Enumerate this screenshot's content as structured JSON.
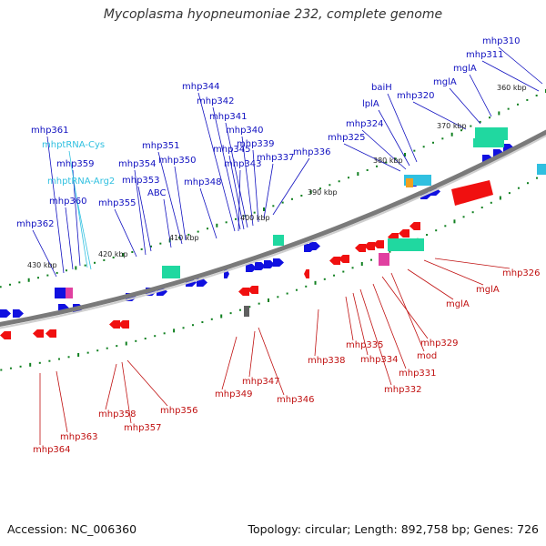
{
  "header": {
    "title": "Mycoplasma hyopneumoniae 232, complete genome"
  },
  "footer": {
    "accession": "Accession: NC_006360",
    "summary": "Topology: circular; Length: 892,758 bp; Genes: 726"
  },
  "colors": {
    "forward_label": "#1010c0",
    "reverse_label": "#c01010",
    "trna_label": "#30c0e0",
    "forward_gene": "#1010e0",
    "reverse_gene": "#f01010",
    "rrna": "#20d8a0",
    "backbone": "#808080",
    "tick": "#108020"
  },
  "kbp_labels": [
    "360 kbp",
    "370 kbp",
    "380 kbp",
    "390 kbp",
    "400 kbp",
    "410 kbp",
    "420 kbp",
    "430 kbp"
  ],
  "forward_labels": [
    "mhp310",
    "mhp311",
    "mglA",
    "mglA",
    "mhp320",
    "baiH",
    "lplA",
    "mhp324",
    "mhp325",
    "mhp336",
    "mhp337",
    "mhp339",
    "mhp340",
    "mhp341",
    "mhp342",
    "mhp344",
    "mhp345",
    "mhp343",
    "mhp348",
    "mhp350",
    "mhp351",
    "ABC",
    "mhp353",
    "mhp354",
    "mhp355",
    "mhp359",
    "mhp360",
    "mhp361",
    "mhp362"
  ],
  "trna_labels": [
    "mhptRNA-Cys",
    "mhptRNA-Arg2"
  ],
  "reverse_labels": [
    "mhp326",
    "mglA",
    "mglA",
    "mod",
    "mhp329",
    "mhp331",
    "mhp332",
    "mhp334",
    "mhp335",
    "mhp338",
    "mhp346",
    "mhp347",
    "mhp349",
    "mhp356",
    "mhp357",
    "mhp358",
    "mhp363",
    "mhp364"
  ]
}
